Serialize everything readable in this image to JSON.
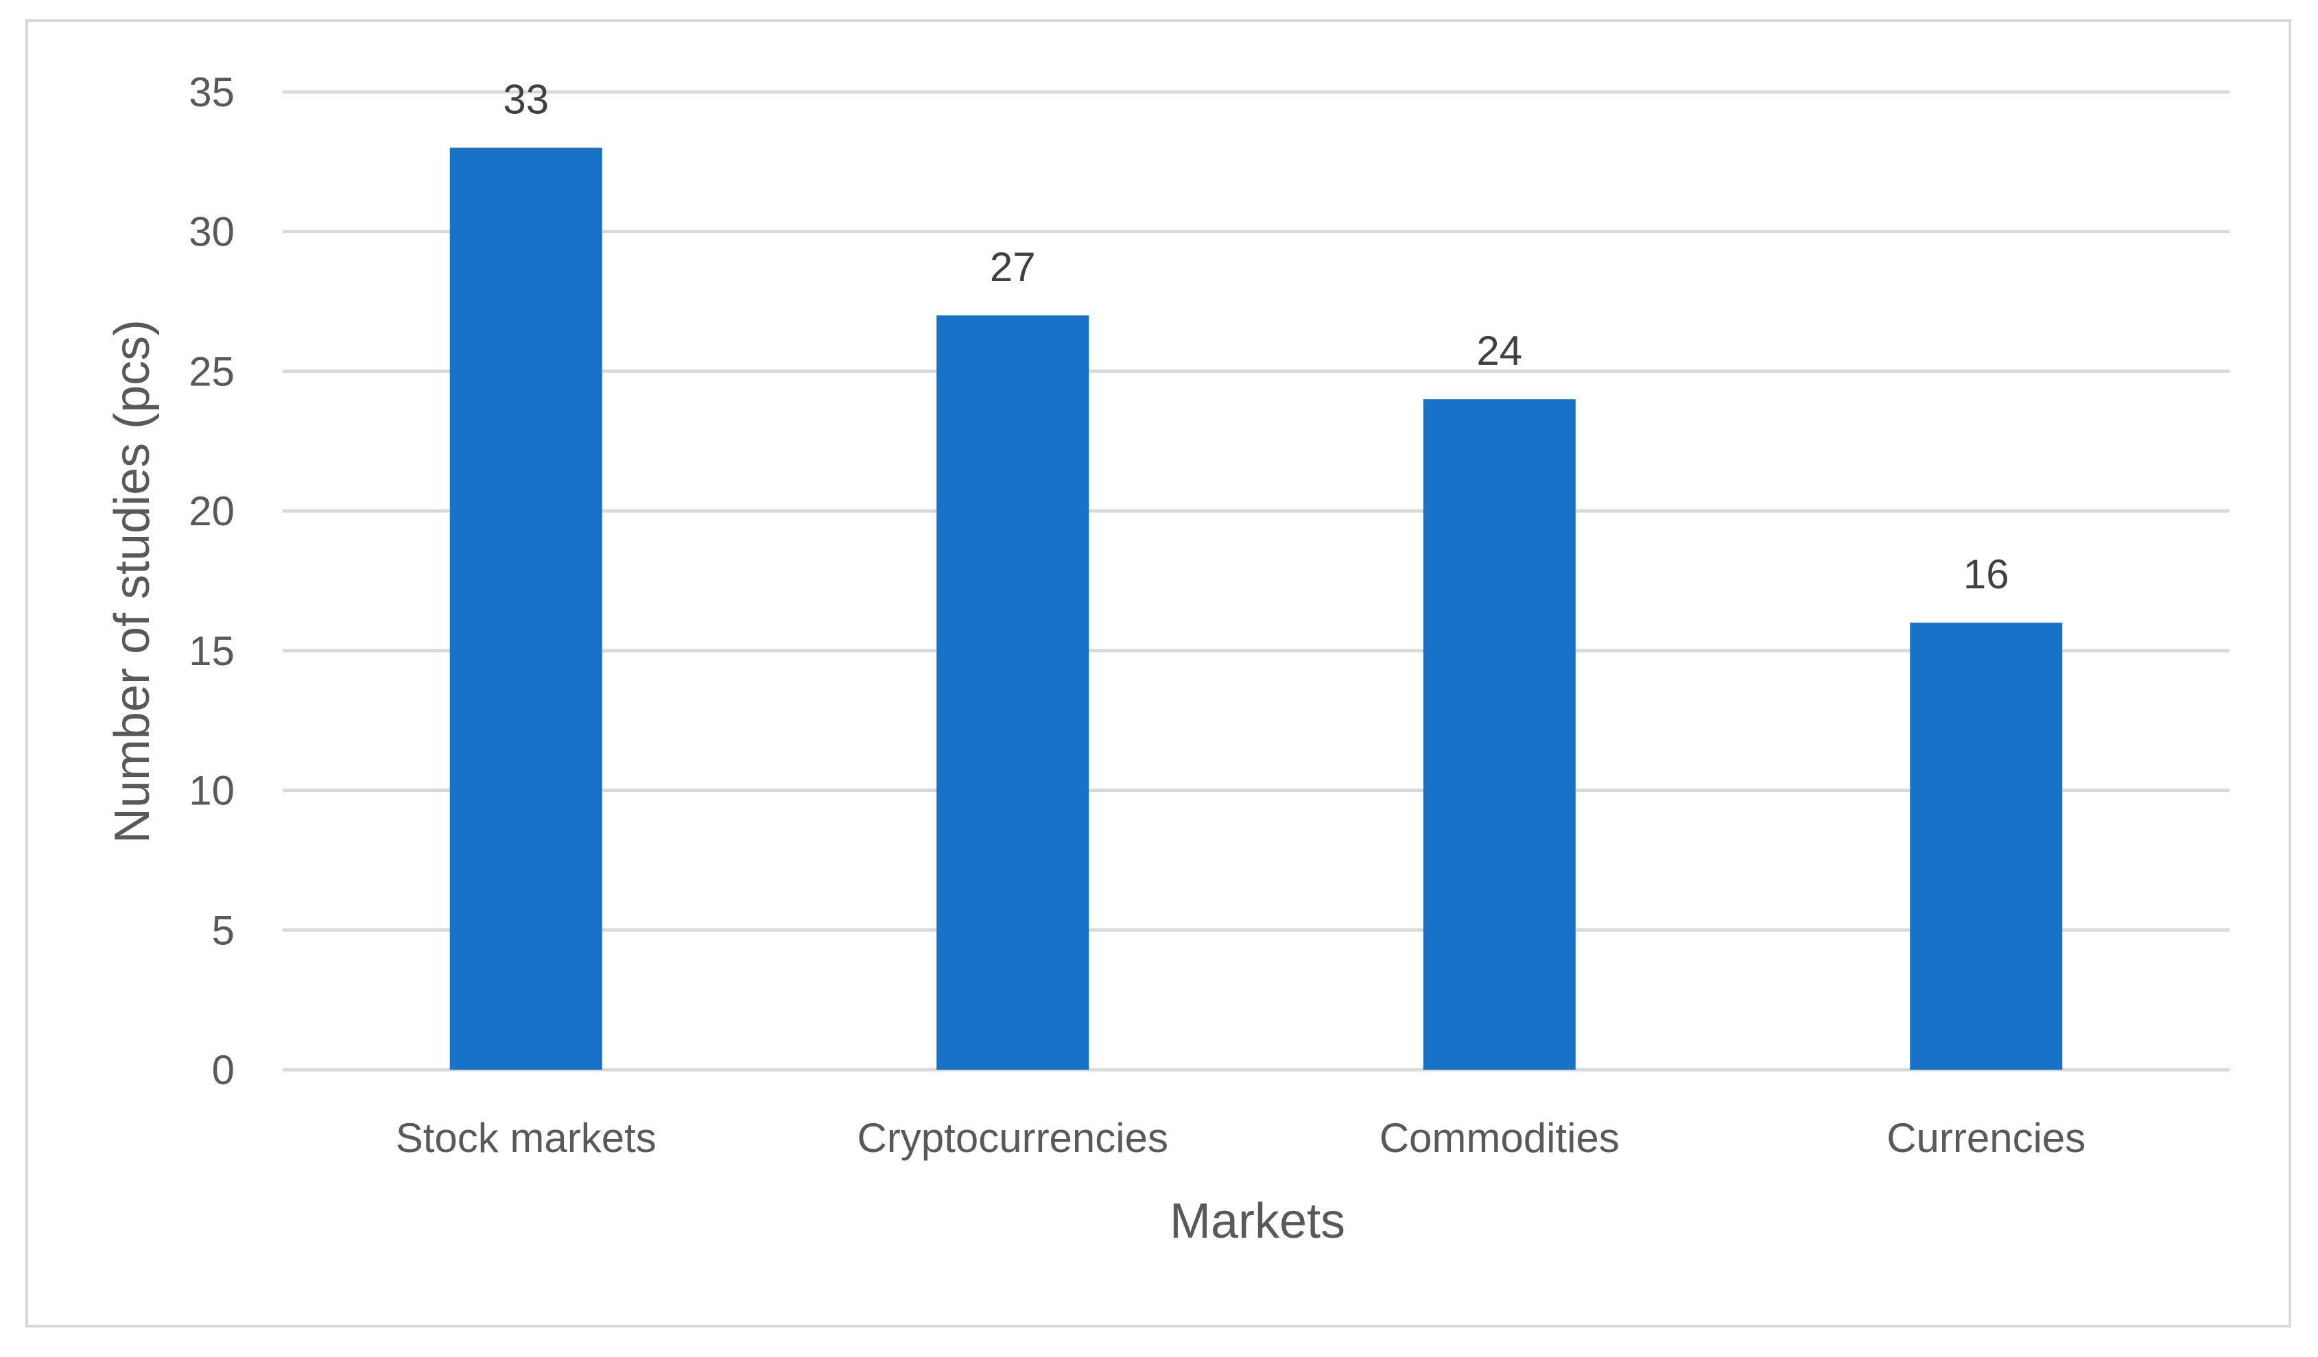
{
  "chart_data": {
    "type": "bar",
    "title": "",
    "xlabel": "Markets",
    "ylabel": "Number of studies (pcs)",
    "categories": [
      "Stock markets",
      "Cryptocurrencies",
      "Commodities",
      "Currencies"
    ],
    "values": [
      33,
      27,
      24,
      16
    ],
    "data_labels": [
      "33",
      "27",
      "24",
      "16"
    ],
    "y_ticks": [
      "0",
      "5",
      "10",
      "15",
      "20",
      "25",
      "30",
      "35"
    ],
    "ylim": [
      0,
      35
    ],
    "grid": true,
    "legend": "none",
    "bar_color": "#1872C8",
    "grid_color": "#d9d9d9"
  }
}
